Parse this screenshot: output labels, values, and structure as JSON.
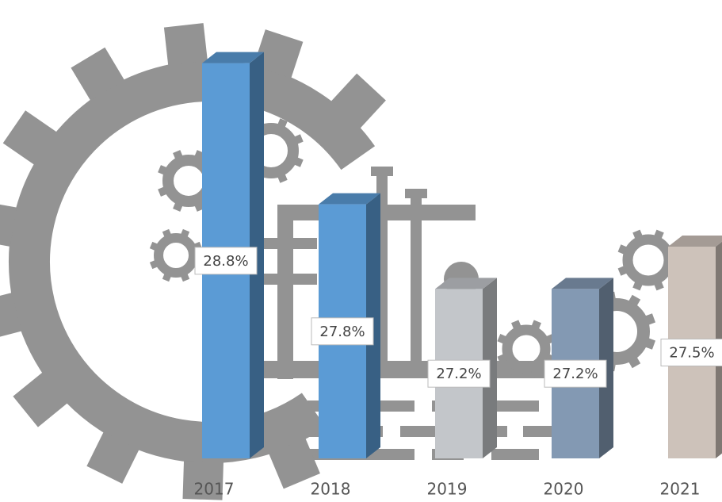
{
  "chart_data": {
    "type": "bar3d",
    "categories": [
      "2017",
      "2018",
      "2019",
      "2020",
      "2021"
    ],
    "values": [
      28.8,
      27.8,
      27.2,
      27.2,
      27.5
    ],
    "value_labels": [
      "28.8%",
      "27.8%",
      "27.2%",
      "27.2%",
      "27.5%"
    ],
    "colors": [
      "#5b9bd5",
      "#5b9bd5",
      "#c3c6ca",
      "#8399b3",
      "#cdc2ba"
    ],
    "ylim": [
      26,
      29
    ]
  }
}
